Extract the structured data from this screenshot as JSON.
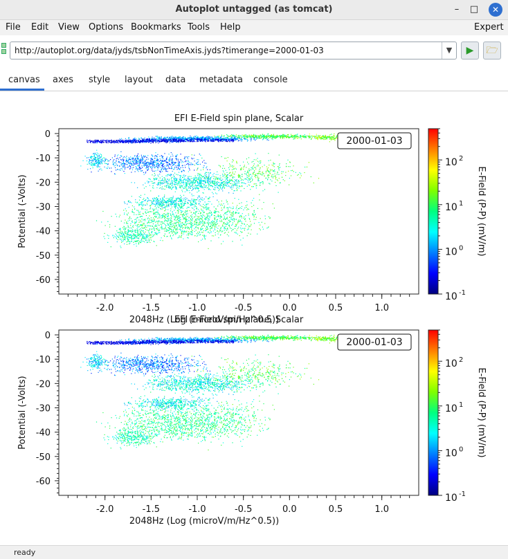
{
  "window": {
    "title": "Autoplot untagged (as tomcat)",
    "minimize_glyph": "–",
    "maximize_glyph": "□",
    "close_glyph": "✕"
  },
  "menubar": {
    "items": [
      "File",
      "Edit",
      "View",
      "Options",
      "Bookmarks",
      "Tools",
      "Help"
    ],
    "expert_label": "Expert"
  },
  "address": {
    "url": "http://autoplot.org/data/jyds/tsbNonTimeAxis.jyds?timerange=2000-01-03",
    "dropdown_icon": "chevron-down-icon",
    "play_icon": "play-icon",
    "folder_icon": "folder-icon"
  },
  "tabs": [
    "canvas",
    "axes",
    "style",
    "layout",
    "data",
    "metadata",
    "console"
  ],
  "active_tab": "canvas",
  "status": {
    "text": "ready"
  },
  "colors": {
    "accent": "#2e6fd0",
    "colorbar": [
      "#00007f",
      "#0000ff",
      "#007fff",
      "#00ffff",
      "#00ff7f",
      "#7fff00",
      "#ffff00",
      "#ff7f00",
      "#ff0000"
    ]
  },
  "chart_data": [
    {
      "type": "scatter",
      "title": "EFI  E-Field spin plane, Scalar",
      "xlabel": "2048Hz (Log (microV/m/Hz^0.5))",
      "ylabel": "Potential (-Volts)",
      "xlim": [
        -2.5,
        1.4
      ],
      "ylim": [
        -66,
        2
      ],
      "xticks": [
        "-2.0",
        "-1.5",
        "-1.0",
        "-0.5",
        "0.0",
        "0.5",
        "1.0"
      ],
      "xtick_values": [
        -2.0,
        -1.5,
        -1.0,
        -0.5,
        0.0,
        0.5,
        1.0
      ],
      "yticks": [
        "0",
        "-10",
        "-20",
        "-30",
        "-40",
        "-50",
        "-60"
      ],
      "ytick_values": [
        0,
        -10,
        -20,
        -30,
        -40,
        -50,
        -60
      ],
      "annotation": "2000-01-03",
      "colorbar": {
        "label": "E-Field (P-P) (mV/m)",
        "scale": "log",
        "range": [
          0.1,
          500
        ],
        "ticks": [
          "10",
          "10",
          "10",
          "10"
        ],
        "tick_exponents": [
          "-1",
          "0",
          "1",
          "2"
        ],
        "tick_values": [
          0.1,
          1,
          10,
          100
        ]
      }
    },
    {
      "type": "scatter",
      "title": "EFI  E-Field spin plane, Scalar",
      "xlabel": "2048Hz (Log (microV/m/Hz^0.5))",
      "ylabel": "Potential (-Volts)",
      "xlim": [
        -2.5,
        1.4
      ],
      "ylim": [
        -66,
        2
      ],
      "xticks": [
        "-2.0",
        "-1.5",
        "-1.0",
        "-0.5",
        "0.0",
        "0.5",
        "1.0"
      ],
      "xtick_values": [
        -2.0,
        -1.5,
        -1.0,
        -0.5,
        0.0,
        0.5,
        1.0
      ],
      "yticks": [
        "0",
        "-10",
        "-20",
        "-30",
        "-40",
        "-50",
        "-60"
      ],
      "ytick_values": [
        0,
        -10,
        -20,
        -30,
        -40,
        -50,
        -60
      ],
      "annotation": "2000-01-03",
      "colorbar": {
        "label": "E-Field (P-P) (mV/m)",
        "scale": "log",
        "range": [
          0.1,
          500
        ],
        "ticks": [
          "10",
          "10",
          "10",
          "10"
        ],
        "tick_exponents": [
          "-1",
          "0",
          "1",
          "2"
        ],
        "tick_values": [
          0.1,
          1,
          10,
          100
        ]
      }
    }
  ]
}
